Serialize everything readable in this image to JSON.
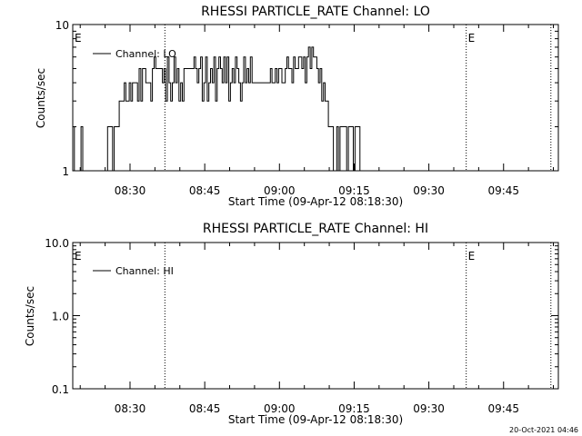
{
  "colors": {
    "background": "#ffffff",
    "foreground": "#000000"
  },
  "chart_data": [
    {
      "type": "line",
      "title": "RHESSI PARTICLE_RATE Channel: LO",
      "xlabel": "Start Time (09-Apr-12 08:18:30)",
      "ylabel": "Counts/sec",
      "yscale": "log",
      "ylim": [
        1,
        10
      ],
      "xlim": [
        "08:18:30",
        "09:56:00"
      ],
      "xticks": [
        "08:30",
        "08:45",
        "09:00",
        "09:15",
        "09:30",
        "09:45"
      ],
      "yticks": [
        {
          "value": 1,
          "label": "1"
        },
        {
          "value": 10,
          "label": "10"
        }
      ],
      "vlines": [
        "08:37:00",
        "09:37:30",
        "09:54:30"
      ],
      "markers": [
        {
          "time": "08:18:30",
          "label": "E"
        },
        {
          "time": "09:37:30",
          "label": "E"
        }
      ],
      "legend_position": "top-left",
      "series": [
        {
          "name": "Channel: LO",
          "sampling_seconds": 20,
          "start": "08:18:30",
          "values": [
            2,
            1,
            1,
            1,
            1,
            2,
            1,
            1,
            1,
            1,
            1,
            1,
            1,
            1,
            1,
            1,
            1,
            1,
            1,
            1,
            1,
            2,
            2,
            2,
            1,
            2,
            2,
            2,
            3,
            3,
            3,
            4,
            3,
            3,
            4,
            3,
            4,
            4,
            4,
            3,
            5,
            3,
            5,
            5,
            4,
            4,
            4,
            3,
            5,
            6,
            5,
            5,
            5,
            5,
            4,
            5,
            3,
            6,
            4,
            3,
            4,
            6,
            4,
            5,
            3,
            4,
            3,
            5,
            5,
            5,
            5,
            5,
            5,
            6,
            5,
            4,
            5,
            6,
            3,
            4,
            6,
            3,
            4,
            5,
            4,
            6,
            3,
            5,
            6,
            5,
            4,
            6,
            4,
            6,
            3,
            4,
            5,
            4,
            6,
            5,
            4,
            3,
            4,
            6,
            4,
            5,
            4,
            6,
            4,
            4,
            4,
            4,
            4,
            4,
            4,
            4,
            4,
            4,
            4,
            5,
            4,
            4,
            5,
            4,
            5,
            5,
            4,
            4,
            5,
            6,
            5,
            5,
            4,
            6,
            5,
            5,
            6,
            6,
            5,
            6,
            4,
            6,
            7,
            5,
            7,
            6,
            6,
            5,
            4,
            5,
            3,
            4,
            3,
            3,
            2,
            2,
            2,
            1,
            1,
            2,
            1,
            2,
            2,
            2,
            2,
            1,
            2,
            2,
            2,
            1,
            2,
            2,
            2,
            1,
            1
          ]
        }
      ]
    },
    {
      "type": "line",
      "title": "RHESSI PARTICLE_RATE Channel: HI",
      "xlabel": "Start Time (09-Apr-12 08:18:30)",
      "ylabel": "Counts/sec",
      "yscale": "log",
      "ylim": [
        0.1,
        10
      ],
      "xlim": [
        "08:18:30",
        "09:56:00"
      ],
      "xticks": [
        "08:30",
        "08:45",
        "09:00",
        "09:15",
        "09:30",
        "09:45"
      ],
      "yticks": [
        {
          "value": 0.1,
          "label": "0.1"
        },
        {
          "value": 1,
          "label": "1.0"
        },
        {
          "value": 10,
          "label": "10.0"
        }
      ],
      "vlines": [
        "08:37:00",
        "09:37:30",
        "09:54:30"
      ],
      "markers": [
        {
          "time": "08:18:30",
          "label": "E"
        },
        {
          "time": "09:37:30",
          "label": "E"
        }
      ],
      "legend_position": "top-left",
      "series": [
        {
          "name": "Channel: HI",
          "values": []
        }
      ]
    }
  ],
  "footer": {
    "timestamp": "20-Oct-2021 04:46"
  }
}
